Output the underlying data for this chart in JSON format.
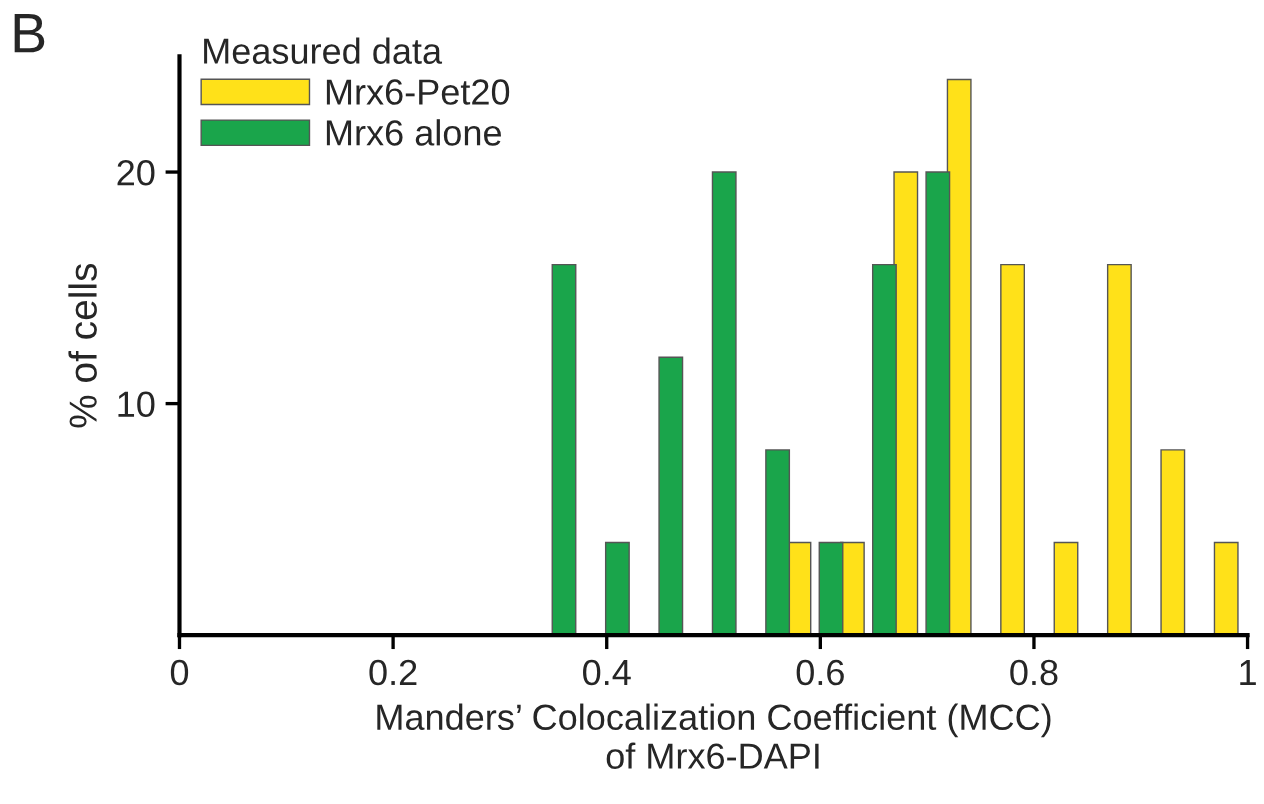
{
  "chart_data": {
    "type": "bar",
    "xlabel": "Manders’ Colocalization Coefficient (MCC)\nof Mrx6-DAPI",
    "ylabel": "% of cells",
    "legend_title": "Measured data",
    "annotations": [
      "B"
    ],
    "series": [
      {
        "name": "Mrx6-Pet20",
        "color": "#ffe119",
        "x": [
          0.58,
          0.63,
          0.68,
          0.73,
          0.78,
          0.83,
          0.88,
          0.93,
          0.98
        ],
        "values": [
          4,
          4,
          20,
          24,
          16,
          4,
          16,
          8,
          4
        ]
      },
      {
        "name": "Mrx6 alone",
        "color": "#1aa54b",
        "x": [
          0.36,
          0.41,
          0.46,
          0.51,
          0.56,
          0.61,
          0.66,
          0.71
        ],
        "values": [
          16,
          4,
          12,
          20,
          8,
          4,
          16,
          20
        ]
      }
    ],
    "xlim": [
      0,
      1
    ],
    "xticks": [
      0,
      0.2,
      0.4,
      0.6,
      0.8,
      1
    ],
    "ylim": [
      0,
      25
    ],
    "yticks": [
      10,
      20
    ],
    "grid": false,
    "legend": "top left"
  }
}
